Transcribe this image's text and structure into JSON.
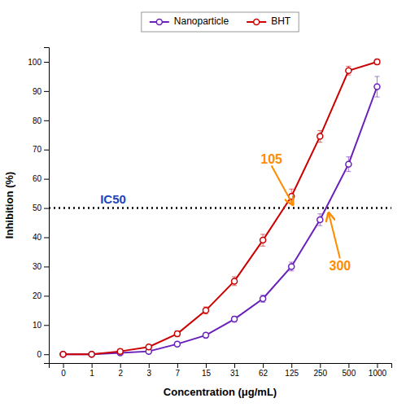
{
  "chart_data": {
    "type": "line",
    "categories": [
      "0",
      "1",
      "2",
      "3",
      "7",
      "15",
      "31",
      "62",
      "125",
      "250",
      "500",
      "1000"
    ],
    "series": [
      {
        "name": "Nanoparticle",
        "color": "#6A1FBB",
        "marker": "circle",
        "values": [
          0,
          0,
          0.5,
          1.0,
          3.5,
          6.5,
          12.0,
          19.0,
          30.0,
          46.0,
          65.0,
          91.5
        ],
        "errors": [
          0.3,
          0.3,
          0.5,
          0.5,
          0.8,
          0.8,
          1.0,
          1.2,
          1.5,
          2.0,
          2.5,
          3.5
        ]
      },
      {
        "name": "BHT",
        "color": "#CC0000",
        "marker": "circle",
        "values": [
          0,
          0,
          1.0,
          2.5,
          7.0,
          15.0,
          25.0,
          39.0,
          54.0,
          74.5,
          97.0,
          100.0
        ],
        "errors": [
          0.3,
          0.3,
          0.5,
          0.5,
          1.0,
          1.2,
          1.5,
          2.0,
          2.5,
          2.0,
          1.5,
          1.0
        ]
      }
    ],
    "xlabel": "Concentration (μg/mL)",
    "ylabel": "Inhibition (%)",
    "ylim": [
      -3,
      105
    ],
    "yticks": [
      0,
      10,
      20,
      30,
      40,
      50,
      60,
      70,
      80,
      90,
      100
    ],
    "grid": false,
    "legend": "top",
    "reference_line": {
      "y": 50,
      "label": "IC50",
      "color": "black",
      "label_color": "#2244BB",
      "line_style": "dotted"
    },
    "annotations": [
      {
        "text": "105",
        "color": "#FF8C00"
      },
      {
        "text": "300",
        "color": "#FF8C00"
      }
    ]
  }
}
